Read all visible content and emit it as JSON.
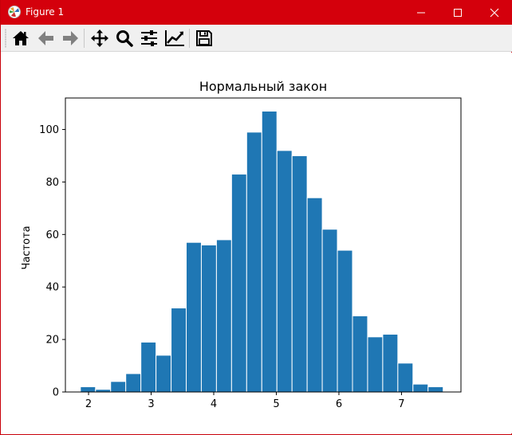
{
  "window": {
    "title": "Figure 1",
    "controls": {
      "minimize": "minimize",
      "maximize": "maximize",
      "close": "close"
    },
    "accent_color": "#d4000c"
  },
  "toolbar": {
    "buttons": [
      {
        "name": "home-button",
        "icon": "home-icon"
      },
      {
        "name": "back-button",
        "icon": "arrow-left-icon"
      },
      {
        "name": "forward-button",
        "icon": "arrow-right-icon"
      },
      {
        "name": "pan-button",
        "icon": "move-icon"
      },
      {
        "name": "zoom-button",
        "icon": "magnifier-icon"
      },
      {
        "name": "configure-subplots-button",
        "icon": "sliders-icon"
      },
      {
        "name": "edit-axis-button",
        "icon": "line-chart-icon"
      },
      {
        "name": "save-button",
        "icon": "floppy-disk-icon"
      }
    ]
  },
  "chart_data": {
    "type": "bar",
    "title": "Нормальный закон",
    "xlabel": "",
    "ylabel": "Частота",
    "bar_color": "#1f77b4",
    "edge_color": "#ffffff",
    "bin_start": 1.87,
    "bin_width": 0.2415,
    "values": [
      2,
      1,
      4,
      7,
      19,
      14,
      32,
      57,
      56,
      58,
      83,
      99,
      107,
      92,
      90,
      74,
      62,
      54,
      29,
      21,
      22,
      11,
      3,
      2
    ],
    "xlim": [
      1.63,
      7.95
    ],
    "ylim": [
      0,
      112
    ],
    "xticks": [
      2,
      3,
      4,
      5,
      6,
      7
    ],
    "xtick_labels": [
      "2",
      "3",
      "4",
      "5",
      "6",
      "7"
    ],
    "yticks": [
      0,
      20,
      40,
      60,
      80,
      100
    ],
    "ytick_labels": [
      "0",
      "20",
      "40",
      "60",
      "80",
      "100"
    ],
    "grid": false,
    "legend": "none"
  }
}
